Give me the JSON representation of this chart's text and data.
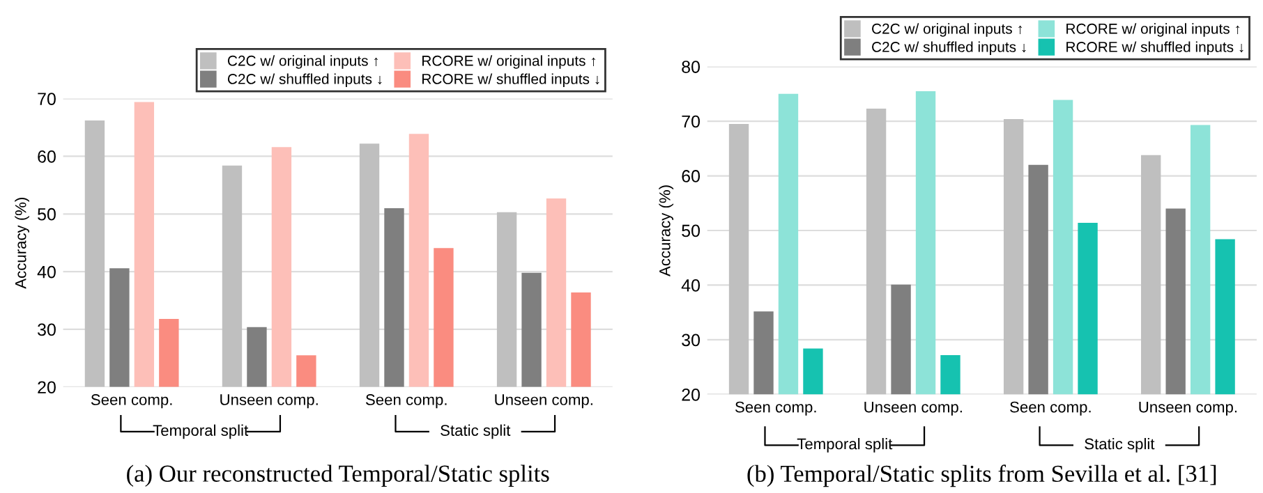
{
  "chart_data": [
    {
      "type": "bar",
      "ylabel": "Accuracy (%)",
      "categories": [
        "Seen comp.",
        "Unseen comp.",
        "Seen comp.",
        "Unseen comp."
      ],
      "series": [
        {
          "name": "C2C w/ original inputs ↑",
          "color": "#bfbfbf",
          "values": [
            66.2,
            58.4,
            62.2,
            50.3
          ]
        },
        {
          "name": "C2C w/ shuffled inputs ↓",
          "color": "#7f7f7f",
          "values": [
            40.6,
            30.4,
            51.0,
            39.8
          ]
        },
        {
          "name": "RCORE w/ original inputs ↑",
          "color": "#fdbfb8",
          "values": [
            69.4,
            61.6,
            63.9,
            52.7
          ]
        },
        {
          "name": "RCORE w/ shuffled inputs ↓",
          "color": "#fa8c80",
          "values": [
            31.8,
            25.5,
            44.1,
            36.4
          ]
        }
      ],
      "ylim": [
        20,
        70
      ],
      "yticks": [
        20,
        30,
        40,
        50,
        60,
        70
      ],
      "grid": "y",
      "legend": "top right",
      "annotations": [
        "Temporal split",
        "Static split",
        "(a) Our reconstructed Temporal/Static splits"
      ]
    },
    {
      "type": "bar",
      "ylabel": "Accuracy (%)",
      "categories": [
        "Seen comp.",
        "Unseen comp.",
        "Seen comp.",
        "Unseen comp."
      ],
      "series": [
        {
          "name": "C2C w/ original inputs ↑",
          "color": "#bfbfbf",
          "values": [
            69.5,
            72.3,
            70.4,
            63.8
          ]
        },
        {
          "name": "C2C w/ shuffled inputs ↓",
          "color": "#7f7f7f",
          "values": [
            35.2,
            40.1,
            62.0,
            54.0
          ]
        },
        {
          "name": "RCORE w/ original inputs ↑",
          "color": "#8de3d8",
          "values": [
            75.0,
            75.5,
            73.9,
            69.3
          ]
        },
        {
          "name": "RCORE w/ shuffled inputs ↓",
          "color": "#16c2b0",
          "values": [
            28.4,
            27.2,
            51.4,
            48.4
          ]
        }
      ],
      "ylim": [
        20,
        80
      ],
      "yticks": [
        20,
        30,
        40,
        50,
        60,
        70,
        80
      ],
      "grid": "y",
      "legend": "top right",
      "annotations": [
        "Temporal split",
        "Static split",
        "(b) Temporal/Static splits from Sevilla et al. [31]"
      ]
    }
  ]
}
